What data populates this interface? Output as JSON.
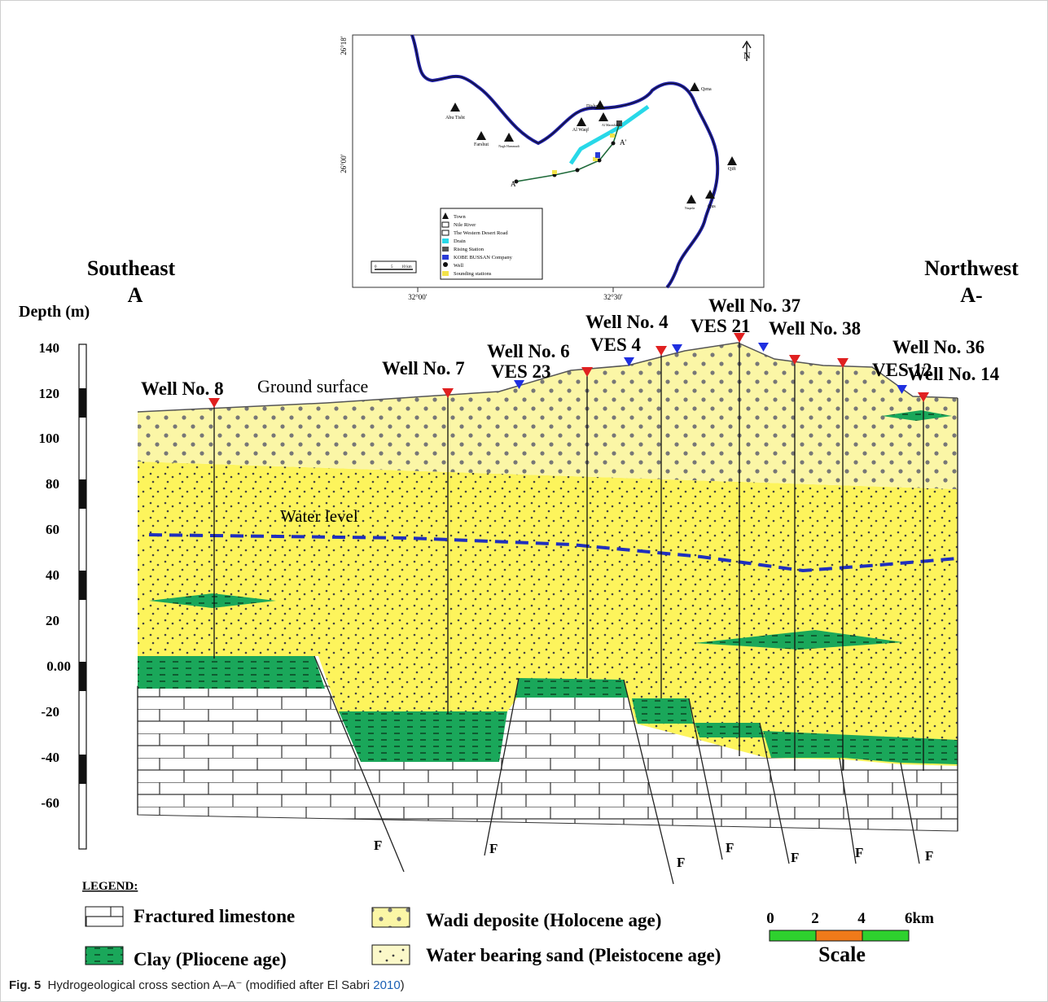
{
  "map": {
    "lat_labels": [
      "26°18′",
      "26°00′"
    ],
    "lon_labels": [
      "32°00′",
      "32°30′"
    ],
    "towns": [
      "Qena",
      "Dishna",
      "Abu Tisht",
      "Al Marashdah",
      "Al Waqf",
      "Farshut",
      "Nagh Hammadi",
      "Qift",
      "Qus",
      "Naqada"
    ],
    "section_labels": {
      "a": "A",
      "a_prime": "A′"
    },
    "north_symbol": "N",
    "legend": [
      "Town",
      "Nile River",
      "The Western Desert Road",
      "Drain",
      "Rising Station",
      "KOBE BUSSAN Company",
      "Well",
      "Sounding stations"
    ],
    "scalebar": {
      "ticks": [
        "0",
        "5",
        "10 km"
      ]
    },
    "colors": {
      "river": "#1f1fa8",
      "drain": "#28d8e8",
      "section": "#1f6a3a"
    }
  },
  "headers": {
    "left_dir": "Southeast",
    "left_letter": "A",
    "right_dir": "Northwest",
    "right_letter": "A-"
  },
  "depth_axis": {
    "title": "Depth (m)",
    "ticks": [
      "140",
      "120",
      "100",
      "80",
      "60",
      "40",
      "20",
      "0.00",
      "-20",
      "-40",
      "-60"
    ]
  },
  "section": {
    "ground_surface": "Ground surface",
    "water_level": "Water level",
    "fault_label": "F",
    "wells": [
      "Well No. 8",
      "Well No. 7",
      "Well No. 6",
      "Well No. 4",
      "Well No. 37",
      "Well No. 38",
      "Well No. 36",
      "Well No. 14"
    ],
    "ves": [
      "VES 23",
      "VES 4",
      "VES 21",
      "VES 12"
    ],
    "colors": {
      "wadi": "#fbf6a6",
      "sand": "#fdf45c",
      "clay": "#1aa75a",
      "limestone": "#ffffff",
      "well_marker": "#e02020",
      "ves_marker": "#1f2fe0",
      "water_line": "#1f2fbd"
    }
  },
  "legend": {
    "title": "LEGEND:",
    "items": [
      "Fractured limestone",
      "Wadi deposite (Holocene age)",
      "Clay (Pliocene age)",
      "Water bearing sand (Pleistocene age)"
    ]
  },
  "scale": {
    "ticks": [
      "0",
      "2",
      "4",
      "6km"
    ],
    "title": "Scale",
    "colors": [
      "#2ed12e",
      "#f07a1a",
      "#2ed12e"
    ]
  },
  "caption": {
    "label": "Fig. 5",
    "text": "Hydrogeological cross section A–A⁻ (modified after El Sabri ",
    "ref": "2010",
    "end": ")"
  }
}
